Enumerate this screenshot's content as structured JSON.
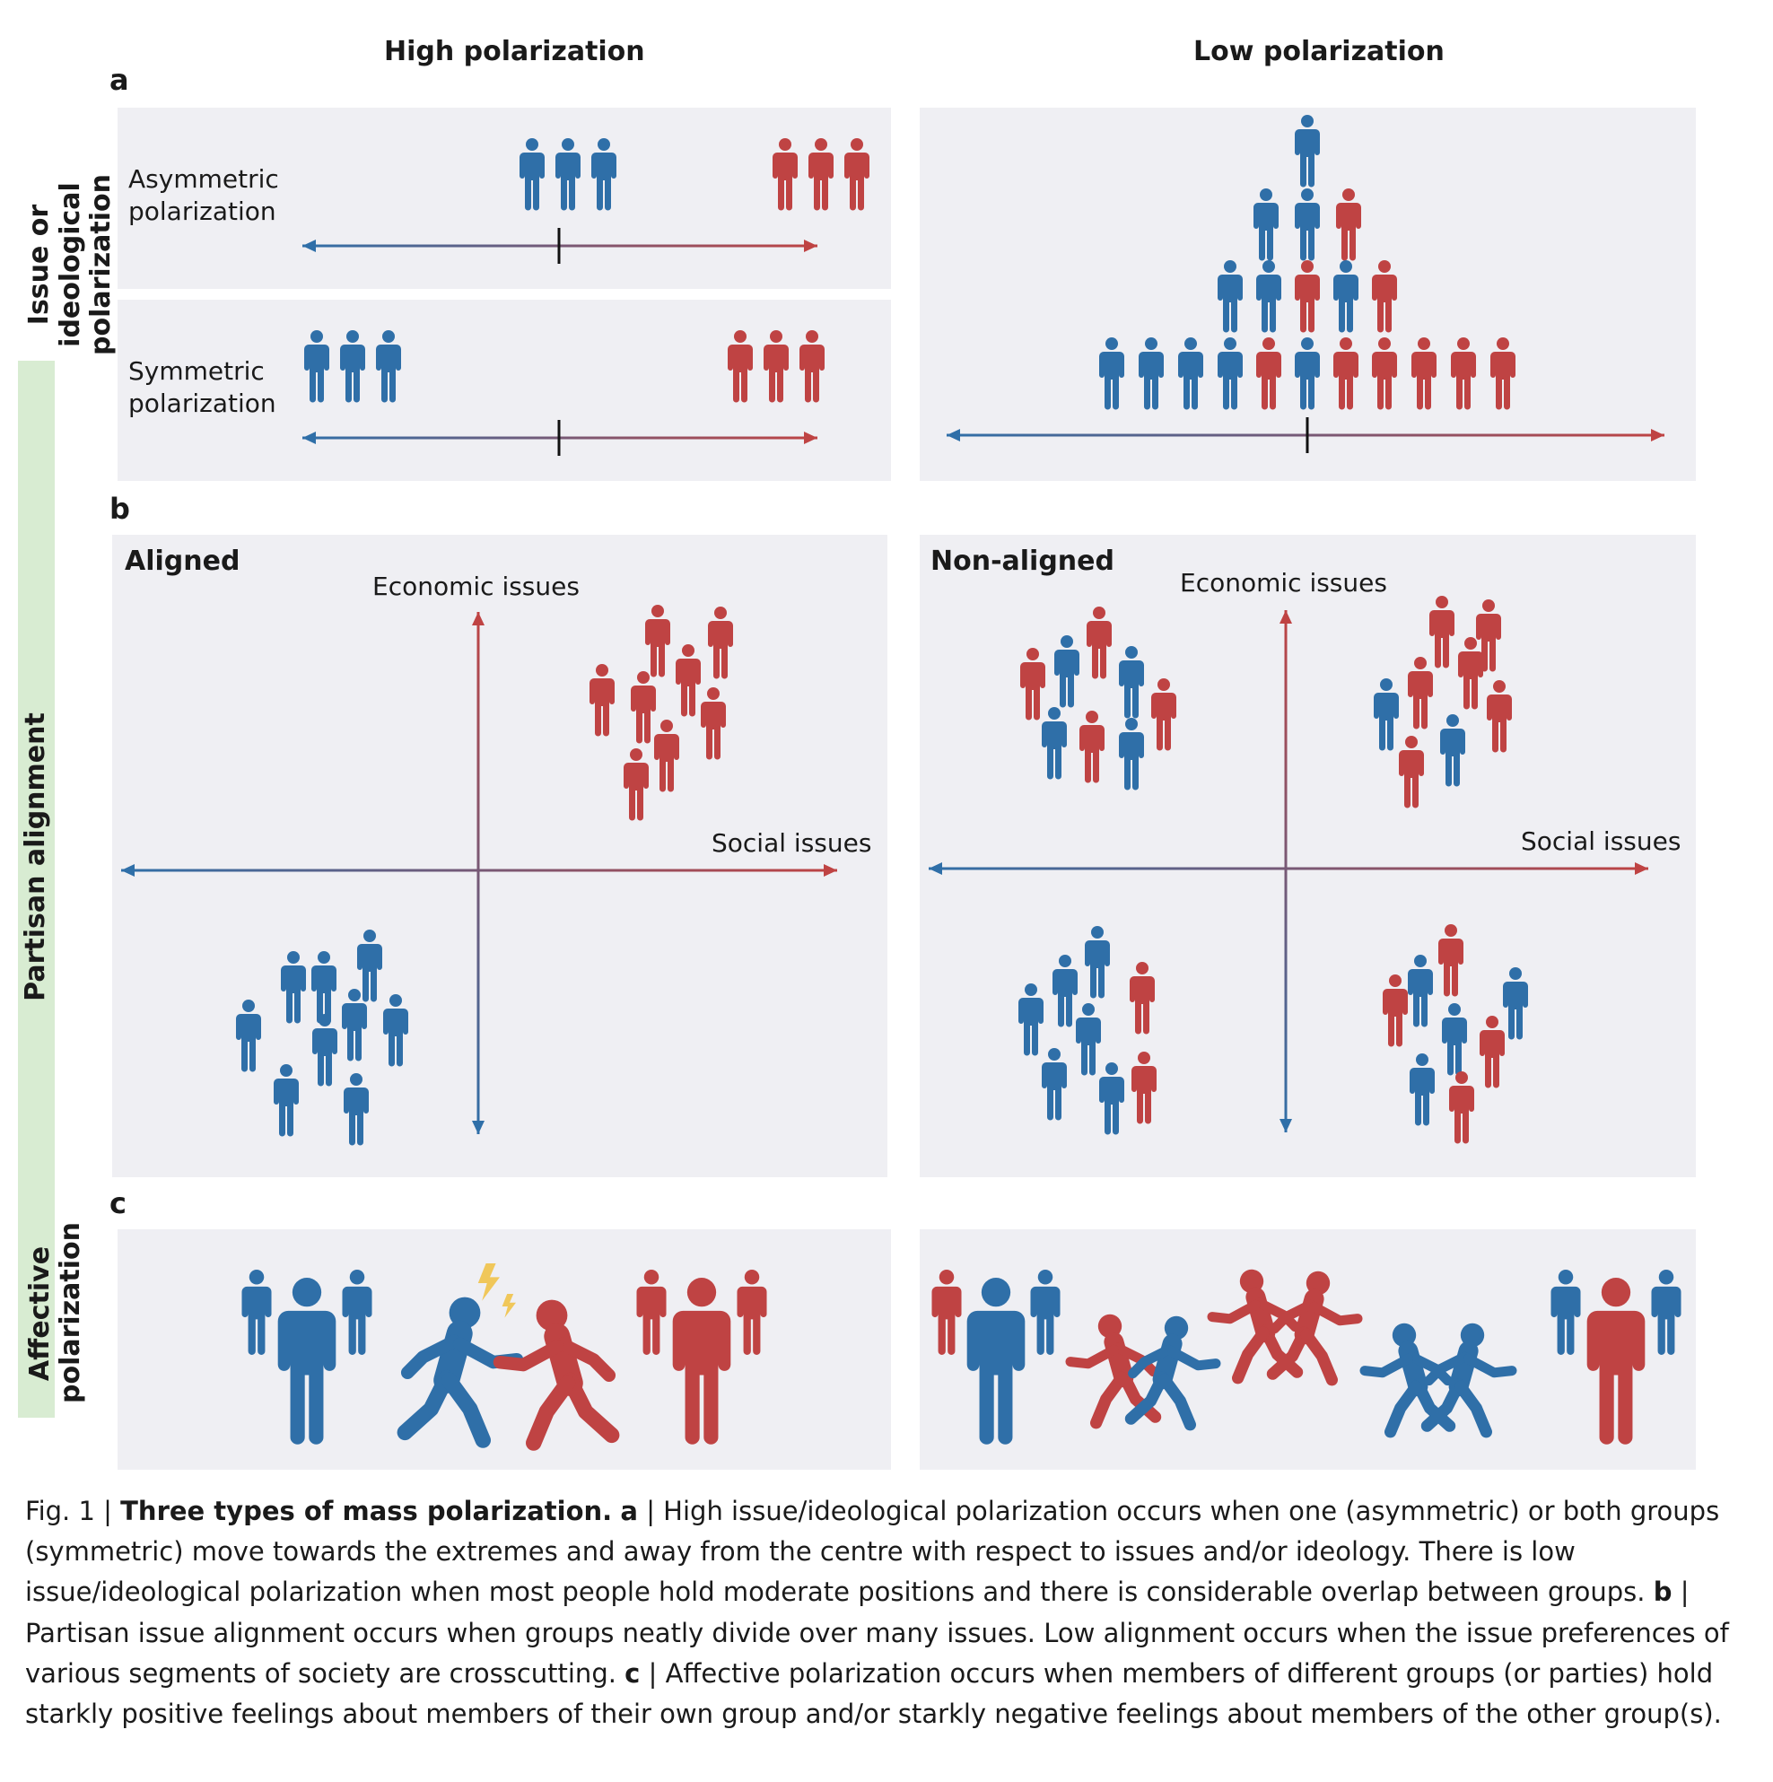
{
  "column_headers": {
    "high": "High polarization",
    "low": "Low polarization"
  },
  "row_labels": {
    "issue": "Issue or ideological polarization",
    "partisan": "Partisan alignment",
    "affective": "Affective polarization"
  },
  "panel_letters": {
    "a": "a",
    "b": "b",
    "c": "c"
  },
  "panel_a": {
    "asymmetric": "Asymmetric polarization",
    "symmetric": "Symmetric polarization"
  },
  "panel_b": {
    "aligned": "Aligned",
    "non_aligned": "Non-aligned",
    "y_axis": "Economic issues",
    "x_axis": "Social issues"
  },
  "caption": {
    "fig": "Fig. 1 |",
    "title": "Three types of mass polarization.",
    "a_letter": "a",
    "a_text": "| High issue/ideological polarization occurs when one (asymmetric) or both groups (symmetric) move towards the extremes and away from the centre with respect to issues and/or ideology. There is low issue/ideological polarization when most people hold moderate positions and there is considerable overlap between groups.",
    "b_letter": "b",
    "b_text": "| Partisan issue alignment occurs when groups neatly divide over many issues. Low alignment occurs when the issue preferences of various segments of society are crosscutting.",
    "c_letter": "c",
    "c_text": "| Affective polarization occurs when members of different groups (or parties) hold starkly positive feelings about members of their own group and/or starkly negative feelings about members of the other group(s)."
  },
  "colors": {
    "blue": "#2f6fa8",
    "red": "#bf4343",
    "panel_bg": "#efeff3",
    "side_band": "#d8ecd2",
    "spark": "#f0c75a"
  }
}
